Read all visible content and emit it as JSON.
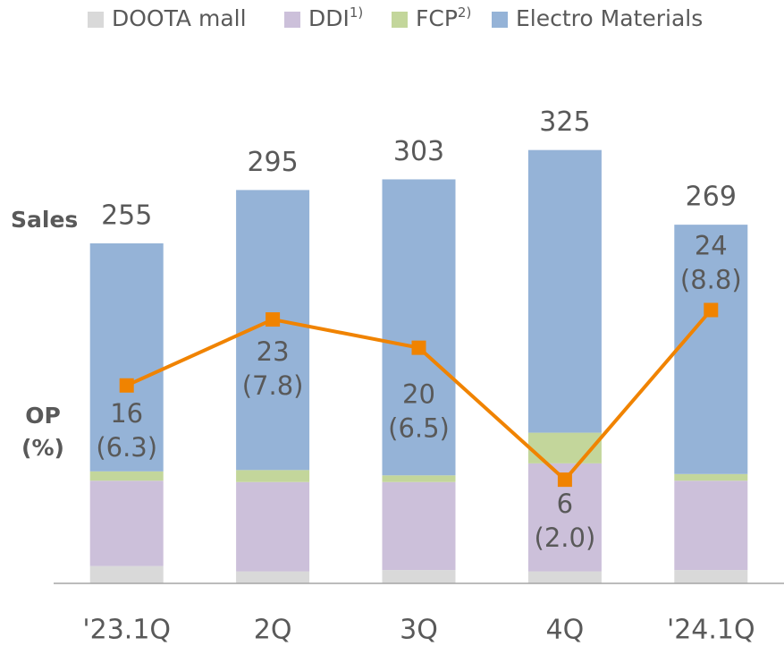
{
  "chart_data": {
    "type": "bar",
    "stacked": true,
    "ylabel": "Sales",
    "categories": [
      "'23.1Q",
      "2Q",
      "3Q",
      "4Q",
      "'24.1Q"
    ],
    "series": [
      {
        "name": "DOOTA mall",
        "color": "#d9d9d9",
        "values": [
          13,
          9,
          10,
          9,
          10
        ]
      },
      {
        "name": "DDI",
        "note": "1)",
        "color": "#ccc0da",
        "values": [
          64,
          67,
          66,
          81,
          67
        ]
      },
      {
        "name": "FCP",
        "note": "2)",
        "color": "#c3d69b",
        "values": [
          7,
          9,
          5,
          23,
          5
        ]
      },
      {
        "name": "Electro Materials",
        "color": "#95b3d7",
        "values": [
          171,
          210,
          222,
          212,
          187
        ]
      }
    ],
    "totals": [
      255,
      295,
      303,
      325,
      269
    ],
    "ylim": [
      0,
      410
    ],
    "line": {
      "type": "line",
      "name": "OP",
      "unit_label": "(%)",
      "axis": "y2",
      "color": "#f08300",
      "values": [
        16,
        23,
        20,
        6,
        24
      ],
      "margin_labels": [
        "(6.3)",
        "(7.8)",
        "(6.5)",
        "(2.0)",
        "(8.8)"
      ]
    },
    "y2lim": [
      -5,
      53
    ]
  }
}
